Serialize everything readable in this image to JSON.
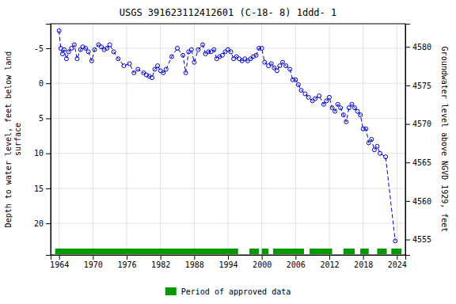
{
  "chart_data": {
    "type": "line",
    "title": "USGS 391623112412601  (C-18- 8) 1ddd- 1",
    "ylabel": "Depth to water level, feet below land\nsurface",
    "y2label": "Groundwater level above NGVD 1929, feet",
    "xlim": [
      1962.5,
      2025.5
    ],
    "xticks": [
      1964,
      1970,
      1976,
      1982,
      1988,
      1994,
      2000,
      2006,
      2012,
      2018,
      2024
    ],
    "ylim": [
      24.5,
      -8.5
    ],
    "yticks": [
      -5,
      0,
      5,
      10,
      15,
      20
    ],
    "y2lim": [
      4553.0,
      4583.0
    ],
    "y2ticks": [
      4555,
      4560,
      4565,
      4570,
      4575,
      4580
    ],
    "grid": true,
    "legend": "bottom",
    "x": [
      1964.0,
      1964.3,
      1964.6,
      1964.9,
      1965.3,
      1965.7,
      1966.2,
      1966.7,
      1967.2,
      1967.8,
      1968.2,
      1968.7,
      1969.2,
      1969.8,
      1970.3,
      1971.0,
      1971.5,
      1972.0,
      1972.5,
      1973.0,
      1973.7,
      1974.5,
      1975.5,
      1976.5,
      1977.3,
      1978.0,
      1979.0,
      1979.5,
      1980.0,
      1980.5,
      1981.0,
      1981.5,
      1982.0,
      1982.5,
      1983.0,
      1984.0,
      1985.0,
      1986.0,
      1986.5,
      1987.0,
      1987.5,
      1988.0,
      1988.7,
      1989.5,
      1990.0,
      1990.5,
      1991.0,
      1991.5,
      1992.0,
      1992.5,
      1993.0,
      1993.5,
      1994.0,
      1994.5,
      1995.0,
      1995.5,
      1996.0,
      1996.5,
      1997.0,
      1997.5,
      1998.0,
      1998.5,
      1999.0,
      1999.5,
      2000.0,
      2000.5,
      2001.2,
      2001.7,
      2002.2,
      2002.7,
      2003.2,
      2003.7,
      2004.3,
      2005.0,
      2005.5,
      2006.0,
      2006.5,
      2007.0,
      2007.7,
      2008.3,
      2009.0,
      2009.5,
      2010.2,
      2011.0,
      2011.5,
      2012.0,
      2012.5,
      2013.0,
      2013.5,
      2014.0,
      2014.5,
      2015.0,
      2015.5,
      2016.0,
      2016.5,
      2017.0,
      2017.5,
      2018.0,
      2018.5,
      2019.0,
      2019.5,
      2020.0,
      2020.5,
      2021.0,
      2022.0,
      2023.7
    ],
    "series": [
      {
        "color": "#0000cc",
        "line_style": "dashed",
        "marker": "circle",
        "values": [
          -7.5,
          -5.0,
          -4.2,
          -4.8,
          -3.5,
          -4.5,
          -5.0,
          -5.5,
          -3.5,
          -4.8,
          -5.2,
          -5.0,
          -4.5,
          -3.2,
          -4.8,
          -5.5,
          -5.2,
          -4.8,
          -5.0,
          -5.5,
          -4.5,
          -3.5,
          -2.5,
          -2.8,
          -1.5,
          -2.0,
          -1.5,
          -1.2,
          -1.0,
          -0.8,
          -2.0,
          -2.5,
          -1.8,
          -1.5,
          -2.0,
          -3.8,
          -5.0,
          -4.0,
          -1.5,
          -4.5,
          -4.8,
          -3.0,
          -4.8,
          -5.5,
          -4.2,
          -4.5,
          -4.5,
          -4.8,
          -3.5,
          -3.8,
          -4.0,
          -4.5,
          -4.8,
          -4.5,
          -3.5,
          -3.8,
          -3.5,
          -3.2,
          -3.5,
          -3.2,
          -3.5,
          -3.8,
          -4.0,
          -5.0,
          -5.0,
          -3.0,
          -2.5,
          -2.8,
          -2.2,
          -1.8,
          -2.5,
          -3.0,
          -2.5,
          -2.0,
          -0.5,
          -0.5,
          0.2,
          1.0,
          1.5,
          2.0,
          2.5,
          2.2,
          1.8,
          3.0,
          2.5,
          2.0,
          3.5,
          4.0,
          3.0,
          3.5,
          4.5,
          5.5,
          3.5,
          3.0,
          3.5,
          4.0,
          4.5,
          6.5,
          6.5,
          8.5,
          8.0,
          9.5,
          9.0,
          10.0,
          10.5,
          22.5
        ]
      }
    ],
    "approved_periods": {
      "name": "Period of approved data",
      "color": "#009900",
      "ranges": [
        [
          1963.3,
          1995.8
        ],
        [
          1997.8,
          1999.5
        ],
        [
          2000.0,
          2001.2
        ],
        [
          2002.0,
          2007.5
        ],
        [
          2008.5,
          2012.5
        ],
        [
          2014.5,
          2016.5
        ],
        [
          2017.5,
          2019.0
        ],
        [
          2020.5,
          2022.2
        ],
        [
          2023.0,
          2024.8
        ]
      ]
    }
  }
}
